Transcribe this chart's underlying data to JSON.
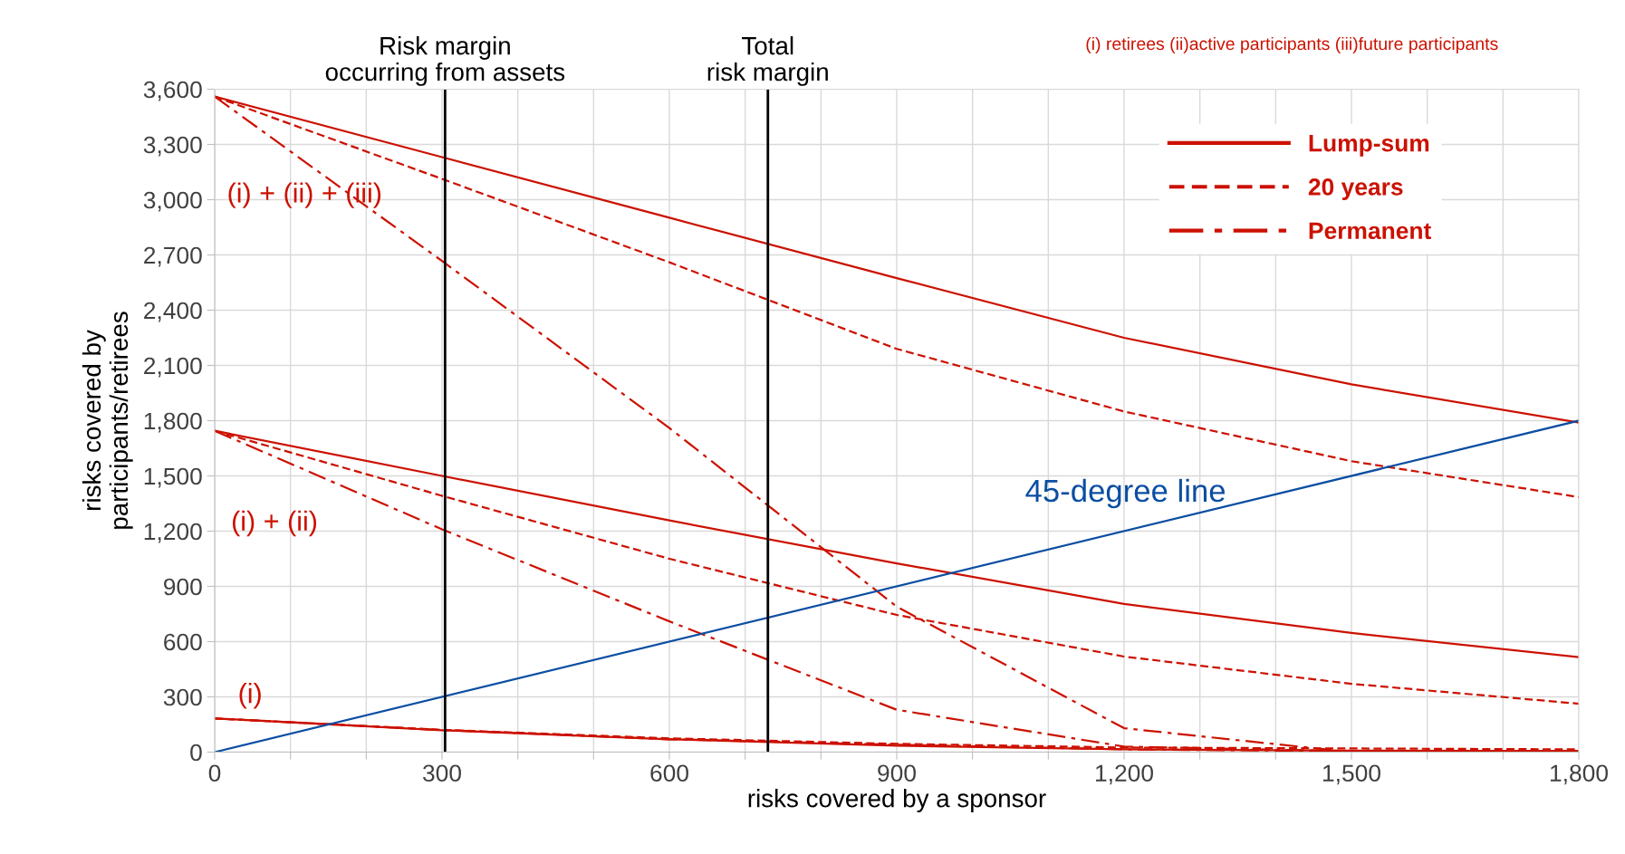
{
  "chart_data": {
    "type": "line",
    "xlabel": "risks covered by a sponsor",
    "ylabel": "risks covered by\nparticipants/retirees",
    "x": [
      0,
      300,
      600,
      900,
      1200,
      1500,
      1800
    ],
    "xlim": [
      0,
      1800
    ],
    "ylim": [
      0,
      3600
    ],
    "xticks": [
      0,
      {
        "value": 100,
        "label": null
      },
      {
        "value": 200,
        "label": null
      },
      {
        "value": 300,
        "label": "300"
      },
      {
        "value": 400,
        "label": null
      },
      {
        "value": 500,
        "label": null
      },
      {
        "value": 600,
        "label": "600"
      },
      {
        "value": 700,
        "label": null
      },
      {
        "value": 800,
        "label": null
      },
      {
        "value": 900,
        "label": "900"
      },
      {
        "value": 1000,
        "label": null
      },
      {
        "value": 1100,
        "label": null
      },
      {
        "value": 1200,
        "label": "1,200"
      },
      {
        "value": 1300,
        "label": null
      },
      {
        "value": 1400,
        "label": null
      },
      {
        "value": 1500,
        "label": "1,500"
      },
      {
        "value": 1600,
        "label": null
      },
      {
        "value": 1700,
        "label": null
      },
      {
        "value": 1800,
        "label": "1,800"
      }
    ],
    "yticks": [
      0,
      300,
      600,
      900,
      {
        "value": 1200,
        "label": "1,200"
      },
      {
        "value": 1500,
        "label": "1,500"
      },
      {
        "value": 1800,
        "label": "1,800"
      },
      {
        "value": 2100,
        "label": "2,100"
      },
      {
        "value": 2400,
        "label": "2,400"
      },
      {
        "value": 2700,
        "label": "2,700"
      },
      {
        "value": 3000,
        "label": "3,000"
      },
      {
        "value": 3300,
        "label": "3,300"
      },
      {
        "value": 3600,
        "label": "3,600"
      }
    ],
    "grid": true,
    "legend": "top right",
    "marker": "none",
    "series": [
      {
        "name": "Lump-sum",
        "color": "#cc1100",
        "line_style": "solid",
        "values": [
          3560,
          3231,
          2902,
          2574,
          2250,
          1997,
          1790
        ]
      },
      {
        "name": "20 years",
        "color": "#cc1100",
        "line_style": "dashed",
        "values": [
          3560,
          3113,
          2660,
          2190,
          1850,
          1580,
          1385
        ]
      },
      {
        "name": "Permanent",
        "color": "#cc1100",
        "line_style": "dashdot",
        "values": [
          3560,
          2667,
          1760,
          790,
          130,
          0,
          0
        ]
      },
      {
        "color": "#cc1100",
        "line_style": "solid",
        "values": [
          1745,
          1500,
          1258,
          1025,
          805,
          647,
          516
        ]
      },
      {
        "color": "#cc1100",
        "line_style": "dashed",
        "values": [
          1745,
          1392,
          1050,
          745,
          519,
          371,
          263
        ]
      },
      {
        "color": "#cc1100",
        "line_style": "dashdot",
        "values": [
          1745,
          1210,
          710,
          230,
          30,
          5,
          5
        ]
      },
      {
        "color": "#cc1100",
        "line_style": "solid",
        "values": [
          183,
          119,
          70,
          35,
          15,
          8,
          5
        ]
      },
      {
        "color": "#cc1100",
        "line_style": "dashed",
        "values": [
          183,
          121,
          75,
          45,
          25,
          20,
          15
        ]
      },
      {
        "color": "#cc1100",
        "line_style": "dashdot",
        "values": [
          183,
          120,
          70,
          40,
          15,
          5,
          5
        ]
      },
      {
        "color": "#0b4ea2",
        "line_style": "solid",
        "x": [
          0,
          1800
        ],
        "values": [
          0,
          1800
        ]
      }
    ],
    "ref_lines": [
      {
        "axis": "x",
        "value": 304,
        "label": "Risk margin\noccurring from assets",
        "color": "#000000"
      },
      {
        "axis": "x",
        "value": 730,
        "label": "Total\nrisk margin",
        "color": "#000000"
      }
    ],
    "annotations": [
      "(i) retirees (ii)active participants (iii)future participants",
      "(i) + (ii) + (iii)",
      "(i) + (ii)",
      "(i)",
      "45-degree line"
    ]
  }
}
